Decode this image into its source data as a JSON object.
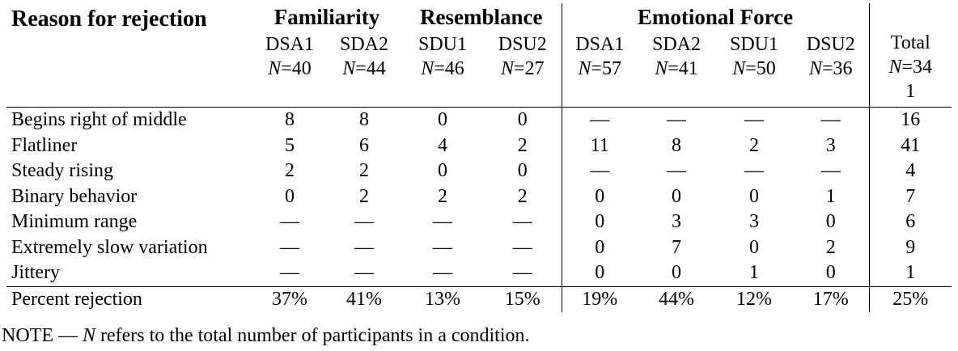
{
  "groups": {
    "familiarity": "Familiarity",
    "resemblance": "Resemblance",
    "emotional_force": "Emotional Force"
  },
  "reason_header": "Reason for rejection",
  "n_prefix": "N",
  "conditions": [
    {
      "name": "DSA1",
      "n": "=40"
    },
    {
      "name": "SDA2",
      "n": "=44"
    },
    {
      "name": "SDU1",
      "n": "=46"
    },
    {
      "name": "DSU2",
      "n": "=27"
    },
    {
      "name": "DSA1",
      "n": "=57"
    },
    {
      "name": "SDA2",
      "n": "=41"
    },
    {
      "name": "SDU1",
      "n": "=50"
    },
    {
      "name": "DSU2",
      "n": "=36"
    }
  ],
  "total": {
    "label": "Total",
    "n": "=341"
  },
  "rows": [
    {
      "reason": "Begins right of middle",
      "values": [
        "8",
        "8",
        "0",
        "0",
        "—",
        "—",
        "—",
        "—"
      ],
      "total": "16"
    },
    {
      "reason": "Flatliner",
      "values": [
        "5",
        "6",
        "4",
        "2",
        "11",
        "8",
        "2",
        "3"
      ],
      "total": "41"
    },
    {
      "reason": "Steady rising",
      "values": [
        "2",
        "2",
        "0",
        "0",
        "—",
        "—",
        "—",
        "—"
      ],
      "total": "4"
    },
    {
      "reason": "Binary behavior",
      "values": [
        "0",
        "2",
        "2",
        "2",
        "0",
        "0",
        "0",
        "1"
      ],
      "total": "7"
    },
    {
      "reason": "Minimum range",
      "values": [
        "—",
        "—",
        "—",
        "—",
        "0",
        "3",
        "3",
        "0"
      ],
      "total": "6"
    },
    {
      "reason": "Extremely slow variation",
      "values": [
        "—",
        "—",
        "—",
        "—",
        "0",
        "7",
        "0",
        "2"
      ],
      "total": "9"
    },
    {
      "reason": "Jittery",
      "values": [
        "—",
        "—",
        "—",
        "—",
        "0",
        "0",
        "1",
        "0"
      ],
      "total": "1"
    }
  ],
  "summary": {
    "reason": "Percent rejection",
    "values": [
      "37%",
      "41%",
      "13%",
      "15%",
      "19%",
      "44%",
      "12%",
      "17%"
    ],
    "total": "25%"
  },
  "note": {
    "prefix": "NOTE — ",
    "n": "N",
    "text": " refers to the total number of participants in a condition."
  }
}
